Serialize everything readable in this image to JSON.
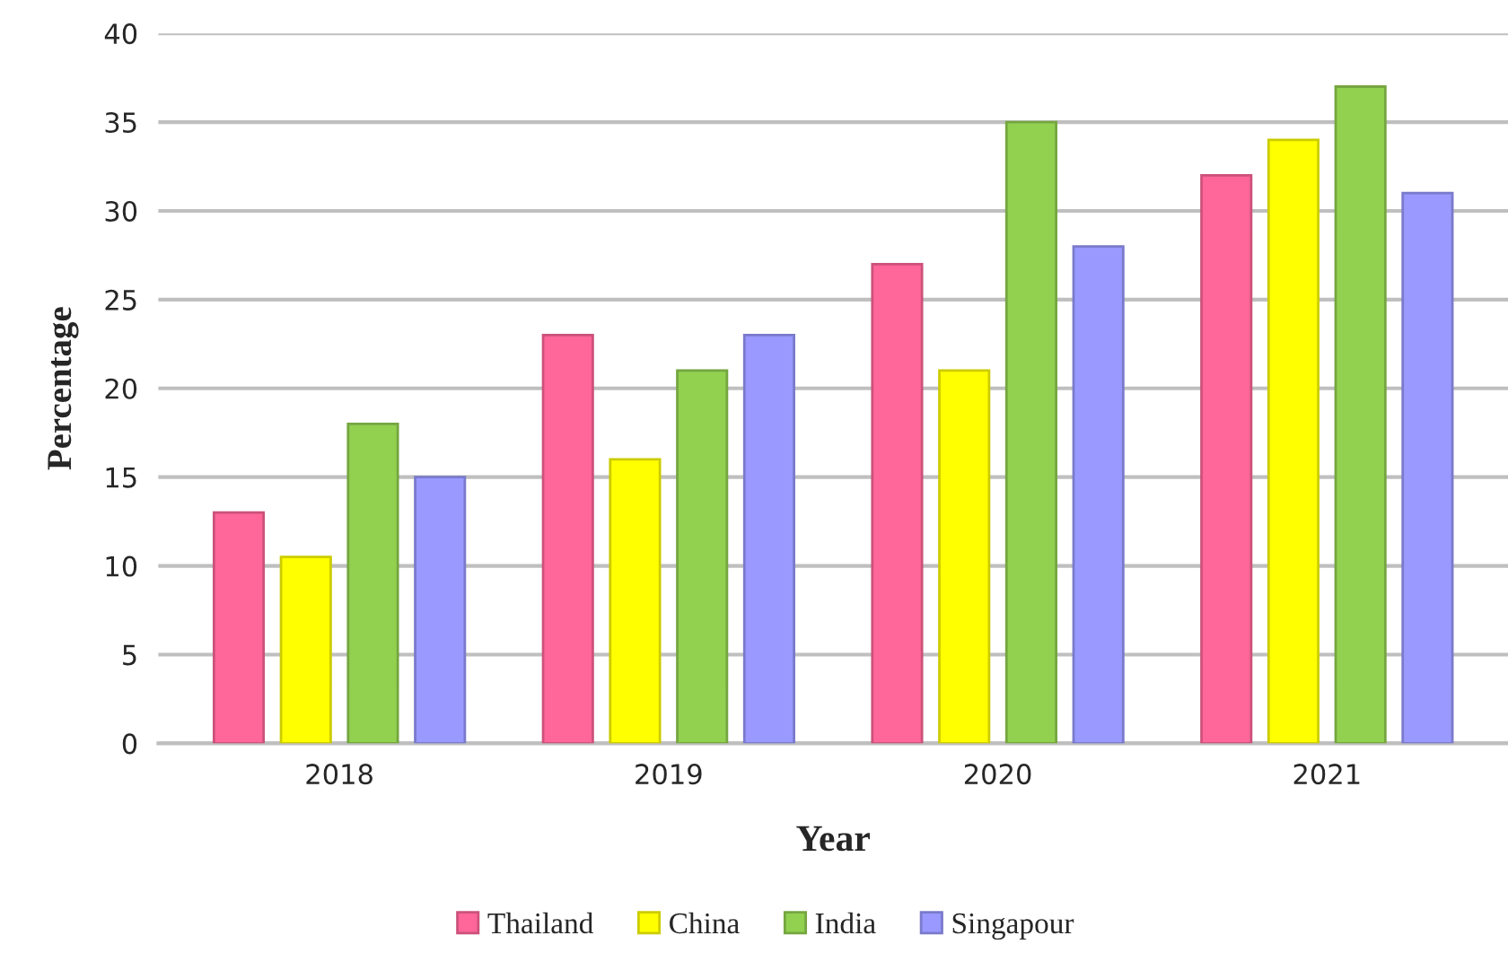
{
  "chart_data": {
    "type": "bar",
    "xlabel": "Year",
    "ylabel": "Percentage",
    "categories": [
      "2018",
      "2019",
      "2020",
      "2021"
    ],
    "series": [
      {
        "name": "Thailand",
        "color": "#ff6699",
        "values": [
          13,
          23,
          27,
          32
        ]
      },
      {
        "name": "China",
        "color": "#ffff00",
        "values": [
          10.5,
          16,
          21,
          34
        ]
      },
      {
        "name": "India",
        "color": "#92d050",
        "values": [
          18,
          21,
          35,
          37
        ]
      },
      {
        "name": "Singapour",
        "color": "#9999ff",
        "values": [
          15,
          23,
          28,
          31
        ]
      }
    ],
    "ylim": [
      0,
      40
    ],
    "yticks": [
      0,
      5,
      10,
      15,
      20,
      25,
      30,
      35,
      40
    ],
    "grid": "y",
    "legend": "bottom"
  }
}
